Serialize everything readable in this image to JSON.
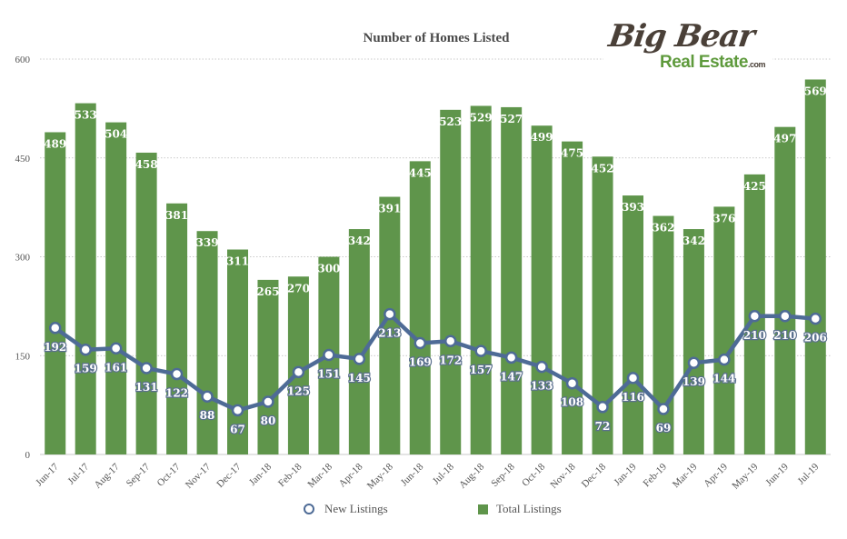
{
  "chart_data": {
    "type": "bar",
    "title": "Number of Homes Listed",
    "categories": [
      "Jun-17",
      "Jul-17",
      "Aug-17",
      "Sep-17",
      "Oct-17",
      "Nov-17",
      "Dec-17",
      "Jan-18",
      "Feb-18",
      "Mar-18",
      "Apr-18",
      "May-18",
      "Jun-18",
      "Jul-18",
      "Aug-18",
      "Sep-18",
      "Oct-18",
      "Nov-18",
      "Dec-18",
      "Jan-19",
      "Feb-19",
      "Mar-19",
      "Apr-19",
      "May-19",
      "Jun-19",
      "Jul-19"
    ],
    "series": [
      {
        "name": "Total Listings",
        "type": "bar",
        "color": "#5f954b",
        "values": [
          489,
          533,
          504,
          458,
          381,
          339,
          311,
          265,
          270,
          300,
          342,
          391,
          445,
          523,
          529,
          527,
          499,
          475,
          452,
          393,
          362,
          342,
          376,
          425,
          497,
          569
        ]
      },
      {
        "name": "New Listings",
        "type": "line",
        "color": "#4e6b96",
        "values": [
          192,
          159,
          161,
          131,
          122,
          88,
          67,
          80,
          125,
          151,
          145,
          213,
          169,
          172,
          157,
          147,
          133,
          108,
          72,
          116,
          69,
          139,
          144,
          210,
          210,
          206
        ]
      }
    ],
    "ylim": [
      0,
      600
    ],
    "yticks": [
      0,
      150,
      300,
      450,
      600
    ],
    "grid": true,
    "legend": "bottom"
  },
  "logo": {
    "line1": "Big Bear",
    "line2": "Real Estate",
    "suffix": ".com"
  }
}
